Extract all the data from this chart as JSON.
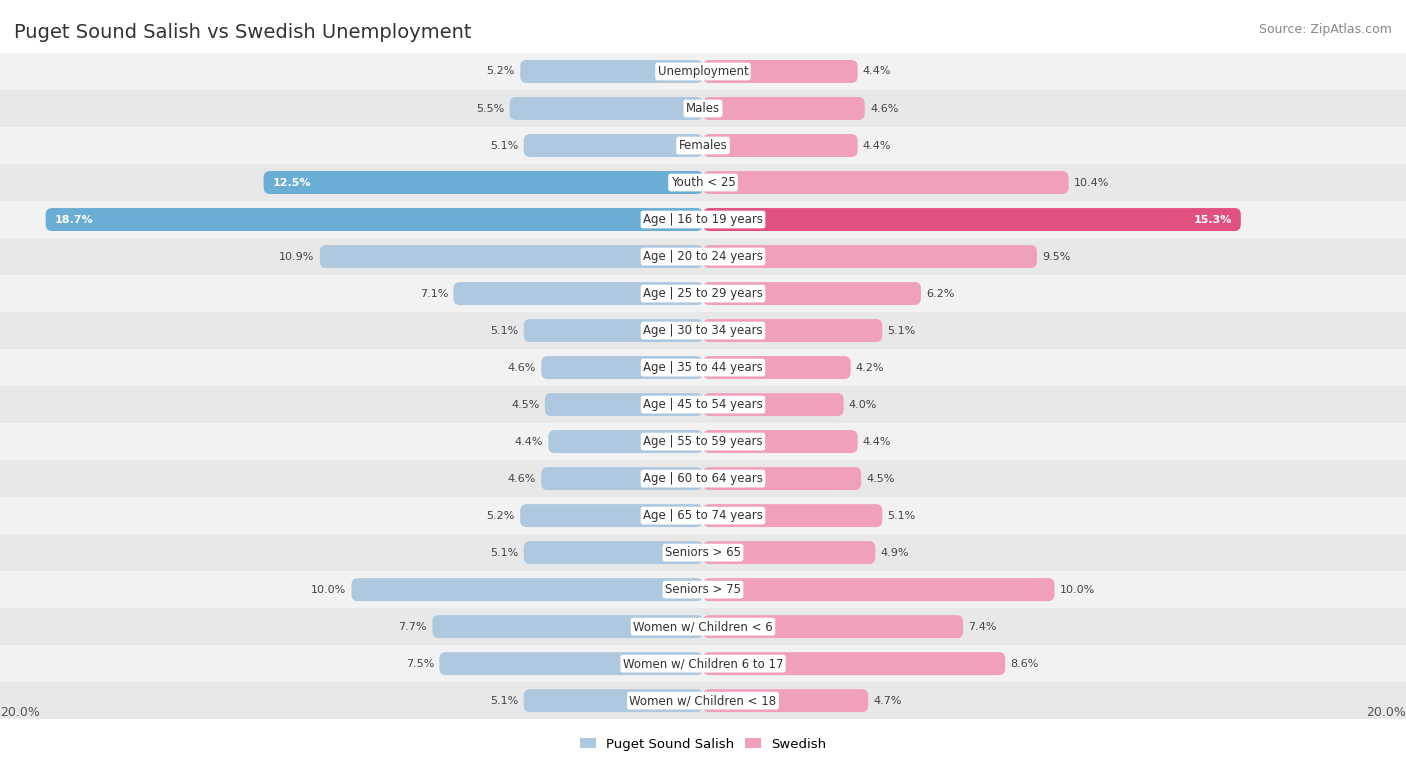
{
  "title": "Puget Sound Salish vs Swedish Unemployment",
  "source": "Source: ZipAtlas.com",
  "categories": [
    "Unemployment",
    "Males",
    "Females",
    "Youth < 25",
    "Age | 16 to 19 years",
    "Age | 20 to 24 years",
    "Age | 25 to 29 years",
    "Age | 30 to 34 years",
    "Age | 35 to 44 years",
    "Age | 45 to 54 years",
    "Age | 55 to 59 years",
    "Age | 60 to 64 years",
    "Age | 65 to 74 years",
    "Seniors > 65",
    "Seniors > 75",
    "Women w/ Children < 6",
    "Women w/ Children 6 to 17",
    "Women w/ Children < 18"
  ],
  "left_values": [
    5.2,
    5.5,
    5.1,
    12.5,
    18.7,
    10.9,
    7.1,
    5.1,
    4.6,
    4.5,
    4.4,
    4.6,
    5.2,
    5.1,
    10.0,
    7.7,
    7.5,
    5.1
  ],
  "right_values": [
    4.4,
    4.6,
    4.4,
    10.4,
    15.3,
    9.5,
    6.2,
    5.1,
    4.2,
    4.0,
    4.4,
    4.5,
    5.1,
    4.9,
    10.0,
    7.4,
    8.6,
    4.7
  ],
  "left_color": "#adc8df",
  "right_color": "#f0a0b8",
  "left_color_highlight": "#6aadd5",
  "right_color_highlight": "#e05080",
  "row_bg_even": "#f0f0f0",
  "row_bg_odd": "#e8e8e8",
  "axis_max": 20.0,
  "legend_left_label": "Puget Sound Salish",
  "legend_right_label": "Swedish",
  "title_fontsize": 14,
  "source_fontsize": 9,
  "cat_fontsize": 8.5,
  "value_fontsize": 8,
  "axis_label_fontsize": 9
}
